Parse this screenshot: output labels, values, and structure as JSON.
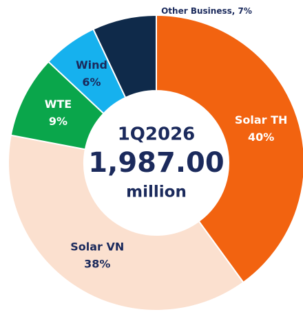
{
  "chart_data": {
    "type": "donut",
    "categories": [
      "Solar TH",
      "Solar VN",
      "WTE",
      "Wind",
      "Other Business"
    ],
    "values": [
      40,
      38,
      9,
      6,
      7
    ],
    "value_labels": [
      "40%",
      "38%",
      "9%",
      "6%",
      "7%"
    ],
    "label_separator": ", ",
    "colors": [
      "#f26310",
      "#fbe0cf",
      "#0aa64b",
      "#16b1ee",
      "#0f2a4a"
    ],
    "center_label": {
      "period": "1Q2026",
      "amount": "1,987.00",
      "unit": "million"
    }
  }
}
